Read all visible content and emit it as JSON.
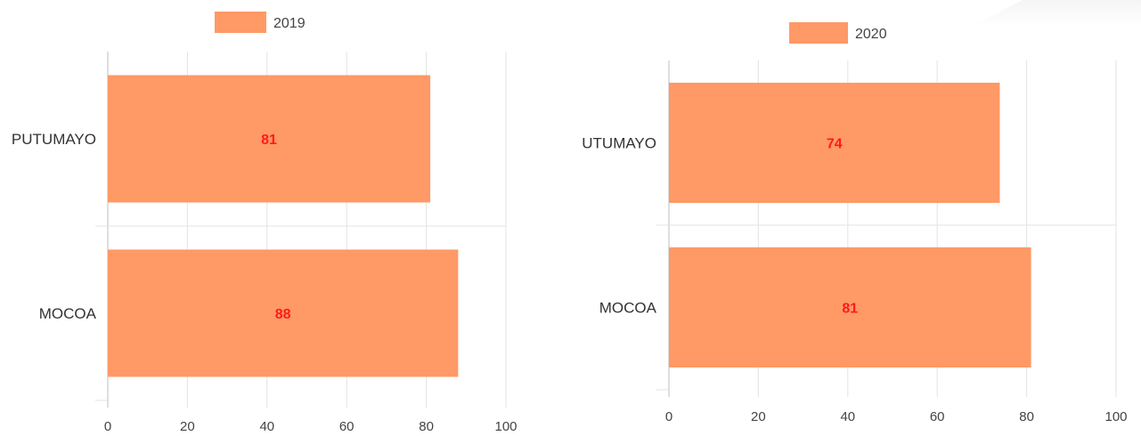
{
  "colors": {
    "bar": "#FF9966",
    "data_label": "#FF1A1A",
    "grid": "#E3E3E3",
    "axis_text": "#444444",
    "category_text": "#333333"
  },
  "chart_data": [
    {
      "type": "bar",
      "orientation": "horizontal",
      "legend_position": "top",
      "series": [
        {
          "name": "2019",
          "values": [
            81,
            88
          ]
        }
      ],
      "categories": [
        "PUTUMAYO",
        "MOCOA"
      ],
      "data_labels": [
        "81",
        "88"
      ],
      "xlim": [
        0,
        100
      ],
      "x_ticks": [
        0,
        20,
        40,
        60,
        80,
        100
      ],
      "grid": true
    },
    {
      "type": "bar",
      "orientation": "horizontal",
      "legend_position": "top",
      "series": [
        {
          "name": "2020",
          "values": [
            74,
            81
          ]
        }
      ],
      "categories": [
        "UTUMAYO",
        "MOCOA"
      ],
      "data_labels": [
        "74",
        "81"
      ],
      "xlim": [
        0,
        100
      ],
      "x_ticks": [
        0,
        20,
        40,
        60,
        80,
        100
      ],
      "grid": true
    }
  ]
}
